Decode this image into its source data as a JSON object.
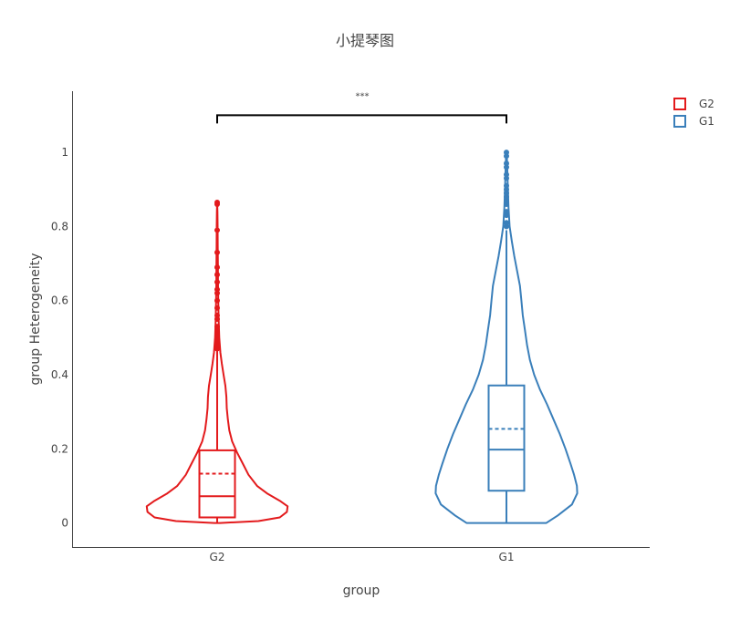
{
  "chart_data": {
    "type": "violin",
    "title": "小提琴图",
    "xlabel": "group",
    "ylabel": "group Heterogeneity",
    "categories": [
      "G2",
      "G1"
    ],
    "ylim": [
      -0.065,
      1.165
    ],
    "y_ticks": [
      0,
      0.2,
      0.4,
      0.6,
      0.8,
      1
    ],
    "y_tick_labels": [
      "0",
      "0.2",
      "0.4",
      "0.6",
      "0.8",
      "1"
    ],
    "grid": false,
    "legend_position": "top-right",
    "legend": [
      "G2",
      "G1"
    ],
    "series": [
      {
        "name": "G2",
        "color": "#e31a1c",
        "box": {
          "min": 0,
          "q1": 0.015,
          "median": 0.072,
          "mean": 0.133,
          "q3": 0.196,
          "upper_fence": 0.47
        },
        "outliers": [
          0.47,
          0.48,
          0.49,
          0.5,
          0.51,
          0.52,
          0.53,
          0.55,
          0.56,
          0.58,
          0.6,
          0.62,
          0.63,
          0.65,
          0.67,
          0.69,
          0.73,
          0.79,
          0.86,
          0.865
        ],
        "density": [
          [
            0,
            0.04
          ],
          [
            0.005,
            0.58
          ],
          [
            0.015,
            0.88
          ],
          [
            0.03,
            0.98
          ],
          [
            0.045,
            0.99
          ],
          [
            0.06,
            0.88
          ],
          [
            0.08,
            0.7
          ],
          [
            0.1,
            0.56
          ],
          [
            0.13,
            0.44
          ],
          [
            0.16,
            0.36
          ],
          [
            0.19,
            0.28
          ],
          [
            0.22,
            0.21
          ],
          [
            0.25,
            0.17
          ],
          [
            0.28,
            0.15
          ],
          [
            0.31,
            0.135
          ],
          [
            0.34,
            0.13
          ],
          [
            0.37,
            0.115
          ],
          [
            0.4,
            0.09
          ],
          [
            0.43,
            0.065
          ],
          [
            0.46,
            0.045
          ],
          [
            0.5,
            0.03
          ],
          [
            0.55,
            0.02
          ],
          [
            0.6,
            0.015
          ],
          [
            0.65,
            0.012
          ],
          [
            0.7,
            0.01
          ],
          [
            0.75,
            0.008
          ],
          [
            0.8,
            0.006
          ],
          [
            0.84,
            0.004
          ],
          [
            0.865,
            0
          ]
        ]
      },
      {
        "name": "G1",
        "color": "#3a7fba",
        "box": {
          "min": 0,
          "q1": 0.087,
          "median": 0.198,
          "mean": 0.254,
          "q3": 0.371,
          "upper_fence": 0.79
        },
        "outliers": [
          0.8,
          0.81,
          0.83,
          0.84,
          0.86,
          0.87,
          0.88,
          0.89,
          0.9,
          0.91,
          0.93,
          0.94,
          0.96,
          0.97,
          0.99,
          1.0
        ],
        "density": [
          [
            0,
            0.56
          ],
          [
            0.02,
            0.72
          ],
          [
            0.05,
            0.92
          ],
          [
            0.08,
            0.995
          ],
          [
            0.1,
            0.99
          ],
          [
            0.13,
            0.95
          ],
          [
            0.16,
            0.9
          ],
          [
            0.2,
            0.83
          ],
          [
            0.24,
            0.75
          ],
          [
            0.28,
            0.66
          ],
          [
            0.32,
            0.57
          ],
          [
            0.36,
            0.47
          ],
          [
            0.4,
            0.39
          ],
          [
            0.44,
            0.33
          ],
          [
            0.48,
            0.29
          ],
          [
            0.52,
            0.26
          ],
          [
            0.56,
            0.23
          ],
          [
            0.6,
            0.21
          ],
          [
            0.64,
            0.19
          ],
          [
            0.68,
            0.15
          ],
          [
            0.72,
            0.11
          ],
          [
            0.76,
            0.075
          ],
          [
            0.8,
            0.045
          ],
          [
            0.85,
            0.03
          ],
          [
            0.9,
            0.02
          ],
          [
            0.95,
            0.013
          ],
          [
            0.98,
            0.008
          ],
          [
            1.0,
            0
          ]
        ]
      }
    ],
    "annotations": [
      {
        "type": "significance",
        "text": "***",
        "between": [
          "G2",
          "G1"
        ],
        "y": 1.1
      }
    ]
  }
}
